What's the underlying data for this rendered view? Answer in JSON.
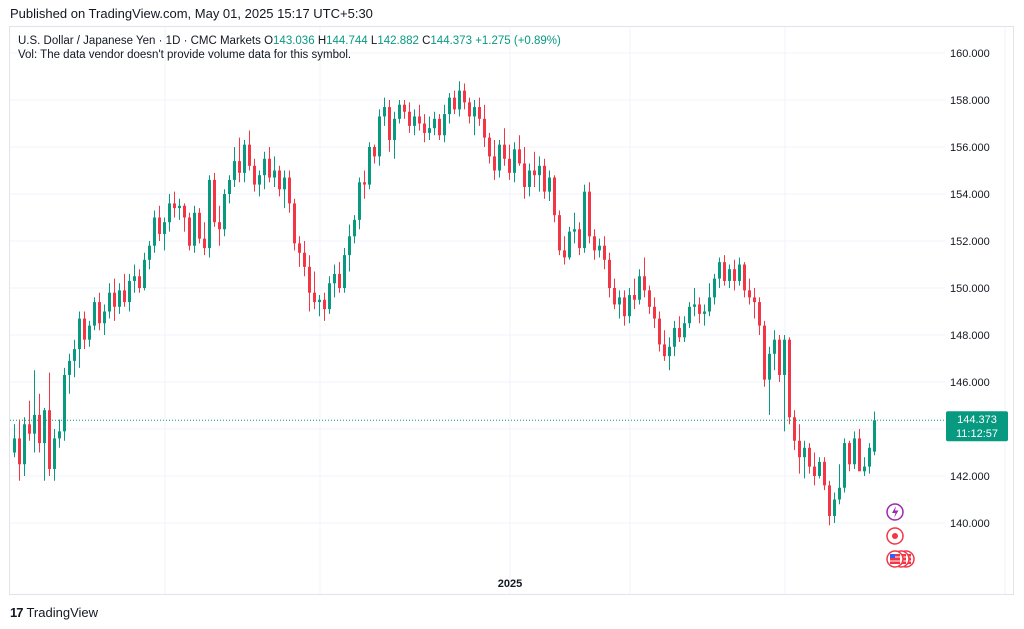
{
  "header": {
    "published": "Published on TradingView.com, May 01, 2025 15:17 UTC+5:30"
  },
  "legend": {
    "symbol": "U.S. Dollar / Japanese Yen · 1D · CMC Markets",
    "o_label": "O",
    "o_value": "143.036",
    "h_label": "H",
    "h_value": "144.744",
    "l_label": "L",
    "l_value": "142.882",
    "c_label": "C",
    "c_value": "144.373",
    "change": "+1.275 (+0.89%)",
    "vol_note": "Vol: The data vendor doesn't provide volume data for this symbol."
  },
  "price_tag": {
    "price": "144.373",
    "countdown": "11:12:57"
  },
  "footer": {
    "brand": "TradingView",
    "logo_text": "17"
  },
  "colors": {
    "up": "#089981",
    "down": "#f23645",
    "grid": "#f0f3fa",
    "axis_text": "#131722"
  },
  "icons": [
    "lightning-event-icon",
    "record-event-icon",
    "us-flag-event-icon"
  ],
  "chart_data": {
    "type": "candlestick",
    "title": "U.S. Dollar / Japanese Yen · 1D · CMC Markets",
    "ylim": [
      138.0,
      161.0
    ],
    "y_ticks": [
      "140.000",
      "142.000",
      "144.000",
      "146.000",
      "148.000",
      "150.000",
      "152.000",
      "154.000",
      "156.000",
      "158.000",
      "160.000"
    ],
    "x_ticks": [
      {
        "label": "2025",
        "index": 99
      }
    ],
    "last_price": 144.373,
    "grid": true,
    "candles": [
      [
        143.0,
        144.2,
        142.8,
        143.6
      ],
      [
        143.6,
        144.4,
        141.8,
        142.5
      ],
      [
        142.5,
        144.5,
        142.0,
        144.2
      ],
      [
        144.2,
        145.2,
        143.5,
        143.8
      ],
      [
        143.8,
        146.5,
        143.0,
        144.6
      ],
      [
        144.6,
        145.5,
        143.0,
        143.4
      ],
      [
        143.4,
        144.9,
        141.8,
        144.8
      ],
      [
        144.8,
        146.4,
        142.0,
        142.3
      ],
      [
        142.3,
        144.0,
        141.8,
        143.6
      ],
      [
        143.6,
        144.4,
        143.2,
        143.9
      ],
      [
        143.9,
        146.6,
        143.5,
        146.3
      ],
      [
        146.3,
        147.2,
        145.5,
        146.9
      ],
      [
        146.9,
        147.8,
        146.2,
        147.4
      ],
      [
        147.4,
        149.0,
        146.6,
        148.7
      ],
      [
        148.7,
        149.0,
        147.4,
        147.8
      ],
      [
        147.8,
        148.6,
        147.5,
        148.4
      ],
      [
        148.4,
        149.6,
        148.2,
        149.4
      ],
      [
        149.4,
        149.8,
        148.2,
        148.5
      ],
      [
        148.5,
        149.3,
        148.0,
        149.0
      ],
      [
        149.0,
        150.2,
        148.7,
        149.8
      ],
      [
        149.8,
        150.4,
        148.6,
        149.2
      ],
      [
        149.2,
        150.2,
        148.9,
        149.9
      ],
      [
        149.9,
        150.6,
        149.2,
        149.4
      ],
      [
        149.4,
        150.6,
        149.0,
        150.3
      ],
      [
        150.3,
        151.0,
        149.8,
        150.5
      ],
      [
        150.5,
        150.8,
        149.8,
        150.0
      ],
      [
        150.0,
        151.5,
        149.9,
        151.2
      ],
      [
        151.2,
        152.0,
        150.8,
        151.8
      ],
      [
        151.8,
        153.3,
        151.5,
        153.0
      ],
      [
        153.0,
        153.5,
        152.0,
        152.3
      ],
      [
        152.3,
        153.0,
        151.6,
        152.8
      ],
      [
        152.8,
        154.0,
        152.4,
        153.6
      ],
      [
        153.6,
        154.1,
        153.0,
        153.4
      ],
      [
        153.4,
        153.8,
        152.9,
        153.5
      ],
      [
        153.5,
        153.6,
        152.4,
        153.0
      ],
      [
        153.0,
        153.2,
        151.6,
        151.8
      ],
      [
        151.8,
        153.5,
        151.5,
        153.2
      ],
      [
        153.2,
        153.4,
        151.9,
        152.1
      ],
      [
        152.1,
        152.8,
        151.4,
        151.7
      ],
      [
        151.7,
        154.8,
        151.3,
        154.6
      ],
      [
        154.6,
        154.9,
        152.6,
        152.8
      ],
      [
        152.8,
        153.5,
        151.8,
        152.5
      ],
      [
        152.5,
        154.2,
        152.2,
        154.0
      ],
      [
        154.0,
        154.8,
        153.6,
        154.6
      ],
      [
        154.6,
        156.0,
        154.3,
        155.4
      ],
      [
        155.4,
        156.4,
        154.5,
        154.9
      ],
      [
        154.9,
        156.3,
        154.5,
        156.1
      ],
      [
        156.1,
        156.7,
        155.0,
        155.2
      ],
      [
        155.2,
        155.5,
        154.1,
        154.4
      ],
      [
        154.4,
        155.0,
        153.9,
        154.8
      ],
      [
        154.8,
        155.8,
        154.2,
        155.5
      ],
      [
        155.5,
        156.0,
        154.5,
        154.7
      ],
      [
        154.7,
        155.6,
        154.3,
        155.0
      ],
      [
        155.0,
        155.2,
        153.9,
        154.2
      ],
      [
        154.2,
        155.0,
        153.4,
        154.7
      ],
      [
        154.7,
        155.0,
        153.2,
        153.6
      ],
      [
        153.6,
        153.8,
        151.6,
        151.9
      ],
      [
        151.9,
        152.2,
        150.9,
        151.5
      ],
      [
        151.5,
        152.0,
        150.5,
        150.9
      ],
      [
        150.9,
        151.4,
        149.0,
        149.8
      ],
      [
        149.8,
        150.7,
        149.1,
        149.4
      ],
      [
        149.4,
        149.7,
        148.8,
        149.5
      ],
      [
        149.5,
        149.8,
        148.6,
        149.1
      ],
      [
        149.1,
        150.5,
        148.9,
        150.2
      ],
      [
        150.2,
        151.0,
        149.6,
        150.6
      ],
      [
        150.6,
        151.1,
        149.8,
        150.0
      ],
      [
        150.0,
        151.7,
        149.8,
        151.4
      ],
      [
        151.4,
        152.7,
        150.7,
        152.2
      ],
      [
        152.2,
        153.1,
        151.9,
        152.9
      ],
      [
        152.9,
        154.7,
        152.5,
        154.5
      ],
      [
        154.5,
        155.0,
        153.8,
        154.4
      ],
      [
        154.4,
        156.2,
        154.2,
        156.0
      ],
      [
        156.0,
        156.1,
        155.3,
        155.6
      ],
      [
        155.6,
        157.6,
        155.2,
        157.3
      ],
      [
        157.3,
        158.1,
        156.9,
        157.7
      ],
      [
        157.7,
        158.0,
        155.8,
        156.3
      ],
      [
        156.3,
        157.5,
        155.5,
        157.2
      ],
      [
        157.2,
        158.0,
        157.0,
        157.8
      ],
      [
        157.8,
        158.0,
        157.2,
        157.5
      ],
      [
        157.5,
        157.9,
        156.6,
        156.9
      ],
      [
        156.9,
        157.6,
        156.5,
        157.3
      ],
      [
        157.3,
        157.8,
        156.7,
        157.0
      ],
      [
        157.0,
        157.4,
        156.2,
        156.6
      ],
      [
        156.6,
        157.3,
        156.3,
        156.8
      ],
      [
        156.8,
        157.5,
        156.5,
        157.2
      ],
      [
        157.2,
        157.4,
        156.3,
        156.5
      ],
      [
        156.5,
        157.8,
        156.2,
        157.4
      ],
      [
        157.4,
        158.3,
        157.0,
        158.1
      ],
      [
        158.1,
        158.4,
        157.4,
        157.6
      ],
      [
        157.6,
        158.8,
        157.3,
        158.4
      ],
      [
        158.4,
        158.7,
        157.6,
        157.9
      ],
      [
        157.9,
        158.1,
        157.0,
        157.3
      ],
      [
        157.3,
        158.0,
        156.5,
        157.7
      ],
      [
        157.7,
        158.1,
        156.9,
        157.2
      ],
      [
        157.2,
        157.8,
        156.0,
        156.4
      ],
      [
        156.4,
        156.6,
        155.3,
        155.6
      ],
      [
        155.6,
        156.3,
        154.6,
        155.0
      ],
      [
        155.0,
        156.3,
        154.7,
        156.1
      ],
      [
        156.1,
        156.8,
        155.2,
        155.5
      ],
      [
        155.5,
        156.1,
        154.6,
        154.9
      ],
      [
        154.9,
        156.2,
        154.5,
        155.9
      ],
      [
        155.9,
        156.5,
        155.2,
        155.3
      ],
      [
        155.3,
        156.0,
        153.8,
        154.3
      ],
      [
        154.3,
        155.3,
        153.9,
        155.0
      ],
      [
        155.0,
        155.8,
        154.3,
        154.8
      ],
      [
        154.8,
        155.6,
        154.1,
        155.2
      ],
      [
        155.2,
        155.5,
        153.8,
        154.1
      ],
      [
        154.1,
        155.0,
        153.7,
        154.7
      ],
      [
        154.7,
        154.8,
        152.8,
        153.1
      ],
      [
        153.1,
        153.3,
        151.4,
        151.6
      ],
      [
        151.6,
        152.2,
        151.0,
        151.3
      ],
      [
        151.3,
        152.6,
        151.2,
        152.4
      ],
      [
        152.4,
        153.2,
        151.9,
        152.5
      ],
      [
        152.5,
        152.8,
        151.4,
        151.7
      ],
      [
        151.7,
        154.4,
        151.5,
        154.1
      ],
      [
        154.1,
        154.5,
        151.9,
        152.2
      ],
      [
        152.2,
        152.5,
        151.2,
        151.6
      ],
      [
        151.6,
        152.1,
        151.3,
        151.8
      ],
      [
        151.8,
        152.2,
        150.8,
        151.2
      ],
      [
        151.2,
        151.5,
        149.6,
        150.0
      ],
      [
        150.0,
        150.4,
        149.1,
        149.3
      ],
      [
        149.3,
        149.9,
        148.7,
        149.6
      ],
      [
        149.6,
        149.9,
        148.4,
        148.8
      ],
      [
        148.8,
        150.0,
        148.5,
        149.7
      ],
      [
        149.7,
        150.4,
        149.1,
        149.5
      ],
      [
        149.5,
        150.8,
        149.3,
        150.5
      ],
      [
        150.5,
        151.3,
        149.6,
        149.9
      ],
      [
        149.9,
        150.1,
        148.9,
        149.2
      ],
      [
        149.2,
        149.6,
        148.3,
        148.7
      ],
      [
        148.7,
        149.0,
        147.3,
        147.6
      ],
      [
        147.6,
        148.2,
        146.9,
        147.1
      ],
      [
        147.1,
        147.9,
        146.5,
        147.5
      ],
      [
        147.5,
        148.6,
        147.1,
        148.3
      ],
      [
        148.3,
        148.8,
        147.7,
        147.9
      ],
      [
        147.9,
        148.8,
        147.7,
        148.5
      ],
      [
        148.5,
        149.4,
        148.3,
        149.2
      ],
      [
        149.2,
        150.0,
        148.8,
        149.3
      ],
      [
        149.3,
        149.6,
        148.5,
        148.9
      ],
      [
        148.9,
        149.3,
        148.4,
        149.0
      ],
      [
        149.0,
        150.2,
        148.8,
        149.6
      ],
      [
        149.6,
        150.6,
        149.3,
        150.4
      ],
      [
        150.4,
        151.3,
        150.0,
        151.1
      ],
      [
        151.1,
        151.4,
        150.1,
        150.3
      ],
      [
        150.3,
        151.0,
        150.0,
        150.8
      ],
      [
        150.8,
        151.2,
        149.9,
        150.3
      ],
      [
        150.3,
        151.3,
        150.1,
        151.0
      ],
      [
        151.0,
        151.1,
        149.6,
        149.9
      ],
      [
        149.9,
        150.4,
        149.3,
        149.6
      ],
      [
        149.6,
        150.0,
        148.7,
        149.4
      ],
      [
        149.4,
        149.6,
        148.0,
        148.4
      ],
      [
        148.4,
        148.6,
        145.8,
        146.1
      ],
      [
        146.1,
        147.5,
        144.6,
        147.2
      ],
      [
        147.2,
        148.2,
        146.5,
        147.8
      ],
      [
        147.8,
        148.0,
        146.0,
        146.3
      ],
      [
        146.3,
        148.0,
        143.9,
        147.8
      ],
      [
        147.8,
        147.9,
        144.2,
        144.5
      ],
      [
        144.5,
        144.8,
        143.1,
        143.5
      ],
      [
        143.5,
        144.2,
        142.1,
        142.8
      ],
      [
        142.8,
        143.5,
        141.9,
        143.2
      ],
      [
        143.2,
        143.4,
        142.1,
        142.4
      ],
      [
        142.4,
        143.0,
        141.6,
        142.0
      ],
      [
        142.0,
        142.8,
        141.9,
        142.6
      ],
      [
        142.6,
        142.8,
        141.4,
        141.6
      ],
      [
        141.6,
        141.8,
        139.9,
        140.3
      ],
      [
        140.3,
        141.3,
        140.0,
        141.0
      ],
      [
        141.0,
        142.5,
        140.8,
        141.5
      ],
      [
        141.5,
        143.6,
        141.3,
        143.4
      ],
      [
        143.4,
        143.5,
        142.2,
        142.5
      ],
      [
        142.5,
        143.9,
        142.3,
        143.6
      ],
      [
        143.6,
        144.0,
        142.3,
        142.2
      ],
      [
        142.2,
        142.8,
        142.0,
        142.4
      ],
      [
        142.4,
        143.4,
        142.1,
        143.2
      ],
      [
        143.036,
        144.744,
        142.882,
        144.373
      ]
    ]
  }
}
